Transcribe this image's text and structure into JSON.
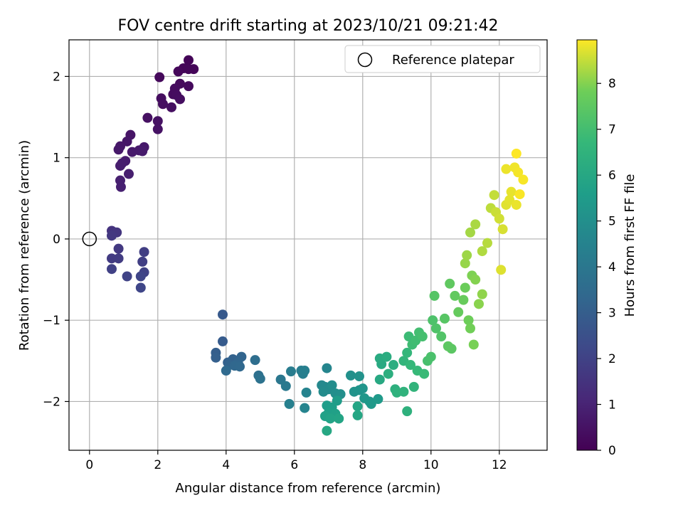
{
  "chart_data": {
    "type": "scatter",
    "title": "FOV centre drift starting at 2023/10/21 09:21:42",
    "xlabel": "Angular distance from reference (arcmin)",
    "ylabel": "Rotation from reference (arcmin)",
    "xlim": [
      -0.6,
      13.4
    ],
    "ylim": [
      -2.6,
      2.45
    ],
    "xticks": [
      0,
      2,
      4,
      6,
      8,
      10,
      12
    ],
    "yticks": [
      -2,
      -1,
      0,
      1,
      2
    ],
    "xtick_labels": [
      "0",
      "2",
      "4",
      "6",
      "8",
      "10",
      "12"
    ],
    "ytick_labels": [
      "−2",
      "−1",
      "0",
      "1",
      "2"
    ],
    "grid": true,
    "legend": {
      "placement": "top-right",
      "entries": [
        "Reference platepar"
      ]
    },
    "reference_point": {
      "x": 0,
      "y": 0,
      "label": "Reference platepar"
    },
    "colorbar": {
      "label": "Hours from first FF file",
      "range": [
        0,
        8.95
      ],
      "ticks": [
        0,
        1,
        2,
        3,
        4,
        5,
        6,
        7,
        8
      ],
      "tick_labels": [
        "0",
        "1",
        "2",
        "3",
        "4",
        "5",
        "6",
        "7",
        "8"
      ],
      "colormap": "viridis"
    },
    "series": [
      {
        "points": [
          [
            2.9,
            2.2,
            0.1
          ],
          [
            2.75,
            2.1,
            0.12
          ],
          [
            3.05,
            2.09,
            0.15
          ],
          [
            2.9,
            2.09,
            0.13
          ],
          [
            2.6,
            2.06,
            0.18
          ],
          [
            2.05,
            1.99,
            0.22
          ],
          [
            2.65,
            1.91,
            0.25
          ],
          [
            2.9,
            1.88,
            0.27
          ],
          [
            2.5,
            1.85,
            0.3
          ],
          [
            2.45,
            1.78,
            0.32
          ],
          [
            2.55,
            1.77,
            0.33
          ],
          [
            2.1,
            1.73,
            0.35
          ],
          [
            2.65,
            1.72,
            0.36
          ],
          [
            2.15,
            1.66,
            0.38
          ],
          [
            2.4,
            1.62,
            0.4
          ],
          [
            1.7,
            1.49,
            0.45
          ],
          [
            2.0,
            1.45,
            0.48
          ],
          [
            2.0,
            1.35,
            0.5
          ],
          [
            1.2,
            1.28,
            0.55
          ],
          [
            1.1,
            1.2,
            0.6
          ],
          [
            0.9,
            1.14,
            0.62
          ],
          [
            0.85,
            1.1,
            0.65
          ],
          [
            1.6,
            1.13,
            0.68
          ],
          [
            1.45,
            1.09,
            0.7
          ],
          [
            1.25,
            1.07,
            0.72
          ],
          [
            1.55,
            1.08,
            0.74
          ],
          [
            1.05,
            0.96,
            0.78
          ],
          [
            0.95,
            0.93,
            0.8
          ],
          [
            0.9,
            0.9,
            0.82
          ],
          [
            1.15,
            0.8,
            0.85
          ],
          [
            0.9,
            0.72,
            0.88
          ],
          [
            0.92,
            0.64,
            0.9
          ],
          [
            0.65,
            0.1,
            1.5
          ],
          [
            0.75,
            0.08,
            1.55
          ],
          [
            0.8,
            0.08,
            1.6
          ],
          [
            0.65,
            0.04,
            1.65
          ],
          [
            0.85,
            -0.12,
            1.7
          ],
          [
            0.65,
            -0.24,
            1.75
          ],
          [
            0.85,
            -0.24,
            1.8
          ],
          [
            1.6,
            -0.16,
            1.85
          ],
          [
            1.55,
            -0.28,
            1.9
          ],
          [
            0.65,
            -0.37,
            1.95
          ],
          [
            1.6,
            -0.41,
            2.0
          ],
          [
            1.1,
            -0.46,
            2.05
          ],
          [
            1.5,
            -0.46,
            2.1
          ],
          [
            1.5,
            -0.6,
            2.15
          ],
          [
            3.9,
            -0.93,
            2.8
          ],
          [
            3.9,
            -1.26,
            2.9
          ],
          [
            3.7,
            -1.4,
            3.0
          ],
          [
            3.7,
            -1.46,
            3.05
          ],
          [
            4.05,
            -1.52,
            3.1
          ],
          [
            4.2,
            -1.48,
            3.15
          ],
          [
            4.1,
            -1.55,
            3.2
          ],
          [
            4.45,
            -1.45,
            3.25
          ],
          [
            4.35,
            -1.52,
            3.3
          ],
          [
            4.25,
            -1.56,
            3.35
          ],
          [
            4.4,
            -1.57,
            3.4
          ],
          [
            4.0,
            -1.62,
            3.45
          ],
          [
            4.85,
            -1.49,
            3.6
          ],
          [
            4.95,
            -1.68,
            3.7
          ],
          [
            5.0,
            -1.72,
            3.8
          ],
          [
            5.6,
            -1.73,
            4.0
          ],
          [
            5.75,
            -1.81,
            4.1
          ],
          [
            5.9,
            -1.63,
            4.2
          ],
          [
            6.2,
            -1.62,
            4.25
          ],
          [
            6.25,
            -1.66,
            4.3
          ],
          [
            6.3,
            -1.62,
            4.35
          ],
          [
            5.85,
            -2.03,
            4.4
          ],
          [
            6.35,
            -1.89,
            4.5
          ],
          [
            6.3,
            -2.08,
            4.55
          ],
          [
            6.95,
            -1.59,
            4.6
          ],
          [
            6.8,
            -1.8,
            4.7
          ],
          [
            6.9,
            -1.82,
            4.75
          ],
          [
            7.0,
            -1.85,
            4.8
          ],
          [
            6.85,
            -1.88,
            4.85
          ],
          [
            7.1,
            -1.8,
            4.9
          ],
          [
            7.2,
            -1.9,
            4.95
          ],
          [
            7.35,
            -1.91,
            5.0
          ],
          [
            7.65,
            -1.68,
            5.05
          ],
          [
            7.9,
            -1.69,
            5.1
          ],
          [
            7.75,
            -1.88,
            5.15
          ],
          [
            7.9,
            -1.86,
            5.2
          ],
          [
            8.0,
            -1.84,
            5.25
          ],
          [
            8.2,
            -2.0,
            5.3
          ],
          [
            8.05,
            -1.96,
            5.35
          ],
          [
            8.25,
            -2.03,
            5.4
          ],
          [
            8.45,
            -1.97,
            5.45
          ],
          [
            7.25,
            -1.99,
            5.5
          ],
          [
            6.95,
            -2.05,
            5.55
          ],
          [
            7.1,
            -2.07,
            5.6
          ],
          [
            7.0,
            -2.14,
            5.65
          ],
          [
            7.2,
            -2.15,
            5.7
          ],
          [
            6.9,
            -2.18,
            5.75
          ],
          [
            7.05,
            -2.21,
            5.8
          ],
          [
            7.3,
            -2.21,
            5.85
          ],
          [
            7.85,
            -2.06,
            5.9
          ],
          [
            7.85,
            -2.17,
            5.95
          ],
          [
            6.95,
            -2.36,
            6.0
          ],
          [
            8.5,
            -1.73,
            6.05
          ],
          [
            8.55,
            -1.54,
            6.1
          ],
          [
            8.5,
            -1.47,
            6.15
          ],
          [
            8.7,
            -1.45,
            6.2
          ],
          [
            8.9,
            -1.55,
            6.25
          ],
          [
            8.75,
            -1.66,
            6.3
          ],
          [
            8.95,
            -1.85,
            6.35
          ],
          [
            9.3,
            -2.12,
            6.4
          ],
          [
            9.0,
            -1.89,
            6.45
          ],
          [
            9.2,
            -1.88,
            6.5
          ],
          [
            9.5,
            -1.82,
            6.55
          ],
          [
            9.2,
            -1.5,
            6.6
          ],
          [
            9.3,
            -1.4,
            6.65
          ],
          [
            9.4,
            -1.55,
            6.7
          ],
          [
            9.6,
            -1.62,
            6.75
          ],
          [
            9.8,
            -1.66,
            6.8
          ],
          [
            9.35,
            -1.2,
            6.85
          ],
          [
            9.45,
            -1.3,
            6.9
          ],
          [
            9.55,
            -1.25,
            6.95
          ],
          [
            9.65,
            -1.15,
            7.0
          ],
          [
            9.75,
            -1.2,
            7.05
          ],
          [
            9.9,
            -1.5,
            7.1
          ],
          [
            10.0,
            -1.45,
            7.15
          ],
          [
            10.05,
            -1.0,
            7.2
          ],
          [
            10.15,
            -1.1,
            7.25
          ],
          [
            10.3,
            -1.2,
            7.3
          ],
          [
            10.1,
            -0.7,
            7.35
          ],
          [
            10.4,
            -0.98,
            7.4
          ],
          [
            10.6,
            -1.35,
            7.45
          ],
          [
            10.5,
            -1.32,
            7.5
          ],
          [
            10.55,
            -0.55,
            7.55
          ],
          [
            10.7,
            -0.7,
            7.6
          ],
          [
            10.8,
            -0.9,
            7.65
          ],
          [
            10.95,
            -0.75,
            7.7
          ],
          [
            11.0,
            -0.6,
            7.75
          ],
          [
            11.1,
            -1.0,
            7.8
          ],
          [
            11.15,
            -1.1,
            7.85
          ],
          [
            11.25,
            -1.3,
            7.9
          ],
          [
            11.2,
            -0.45,
            7.95
          ],
          [
            11.3,
            -0.5,
            8.0
          ],
          [
            11.4,
            -0.8,
            8.05
          ],
          [
            11.5,
            -0.68,
            8.1
          ],
          [
            11.0,
            -0.3,
            8.15
          ],
          [
            11.05,
            -0.2,
            8.2
          ],
          [
            11.15,
            0.08,
            8.25
          ],
          [
            11.3,
            0.18,
            8.3
          ],
          [
            11.5,
            -0.15,
            8.35
          ],
          [
            11.65,
            -0.05,
            8.4
          ],
          [
            11.75,
            0.38,
            8.45
          ],
          [
            11.85,
            0.54,
            8.5
          ],
          [
            11.9,
            0.33,
            8.55
          ],
          [
            12.0,
            0.25,
            8.6
          ],
          [
            12.1,
            0.12,
            8.65
          ],
          [
            12.05,
            -0.38,
            8.7
          ],
          [
            12.2,
            0.42,
            8.72
          ],
          [
            12.3,
            0.48,
            8.75
          ],
          [
            12.35,
            0.58,
            8.78
          ],
          [
            12.5,
            0.42,
            8.8
          ],
          [
            12.2,
            0.86,
            8.82
          ],
          [
            12.45,
            0.88,
            8.85
          ],
          [
            12.55,
            0.82,
            8.88
          ],
          [
            12.7,
            0.73,
            8.9
          ],
          [
            12.6,
            0.55,
            8.92
          ],
          [
            12.5,
            1.05,
            8.95
          ]
        ]
      }
    ]
  }
}
